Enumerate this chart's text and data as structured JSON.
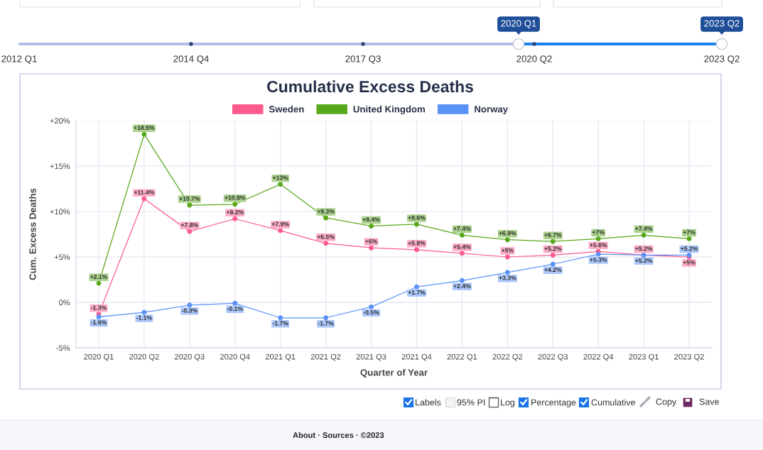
{
  "chart_data": {
    "type": "line",
    "title": "Cumulative Excess Deaths",
    "xlabel": "Quarter of Year",
    "ylabel": "Cum. Excess Deaths",
    "categories": [
      "2020 Q1",
      "2020 Q2",
      "2020 Q3",
      "2020 Q4",
      "2021 Q1",
      "2021 Q2",
      "2021 Q3",
      "2021 Q4",
      "2022 Q1",
      "2022 Q2",
      "2022 Q3",
      "2022 Q4",
      "2023 Q1",
      "2023 Q2"
    ],
    "series": [
      {
        "name": "Sweden",
        "color": "#fc5b8e",
        "values": [
          -1.3,
          11.4,
          7.8,
          9.2,
          7.9,
          6.5,
          6,
          5.8,
          5.4,
          5,
          5.2,
          5.6,
          5.2,
          5
        ],
        "value_labels": [
          "-1.3%",
          "+11.4%",
          "+7.8%",
          "+9.2%",
          "+7.9%",
          "+6.5%",
          "+6%",
          "+5.8%",
          "+5.4%",
          "+5%",
          "+5.2%",
          "+5.6%",
          "+5.2%",
          "+5%"
        ]
      },
      {
        "name": "United Kingdom",
        "color": "#58a81c",
        "values": [
          2.1,
          18.5,
          10.7,
          10.8,
          13,
          9.3,
          8.4,
          8.6,
          7.4,
          6.9,
          6.7,
          7,
          7.4,
          7
        ],
        "value_labels": [
          "+2.1%",
          "+18.5%",
          "+10.7%",
          "+10.8%",
          "+13%",
          "+9.3%",
          "+8.4%",
          "+8.6%",
          "+7.4%",
          "+6.9%",
          "+6.7%",
          "+7%",
          "+7.4%",
          "+7%"
        ]
      },
      {
        "name": "Norway",
        "color": "#5b92f8",
        "values": [
          -1.6,
          -1.1,
          -0.3,
          -0.1,
          -1.7,
          -1.7,
          -0.5,
          1.7,
          2.4,
          3.3,
          4.2,
          5.3,
          5.2,
          5.2
        ],
        "value_labels": [
          "-1.6%",
          "-1.1%",
          "-0.3%",
          "-0.1%",
          "-1.7%",
          "-1.7%",
          "-0.5%",
          "+1.7%",
          "+2.4%",
          "+3.3%",
          "+4.2%",
          "+5.3%",
          "+5.2%",
          "+5.2%"
        ]
      }
    ],
    "ylim": [
      -5,
      20
    ],
    "yticks": [
      {
        "value": -5,
        "label": "-5%"
      },
      {
        "value": 0,
        "label": "0%"
      },
      {
        "value": 5,
        "label": "+5%"
      },
      {
        "value": 10,
        "label": "+10%"
      },
      {
        "value": 15,
        "label": "+15%"
      },
      {
        "value": 20,
        "label": "+20%"
      }
    ],
    "grid": true,
    "legend": "top",
    "marker": "circle",
    "annotations": [
      "2012 Q1",
      "2014 Q4",
      "2017 Q3",
      "2020 Q2",
      "2023 Q2",
      "2020 Q1",
      "2023 Q2",
      "Labels",
      "95% PI",
      "Log",
      "Percentage",
      "Cumulative",
      "Copy",
      "Save",
      "About · Sources · ©2023"
    ]
  }
}
